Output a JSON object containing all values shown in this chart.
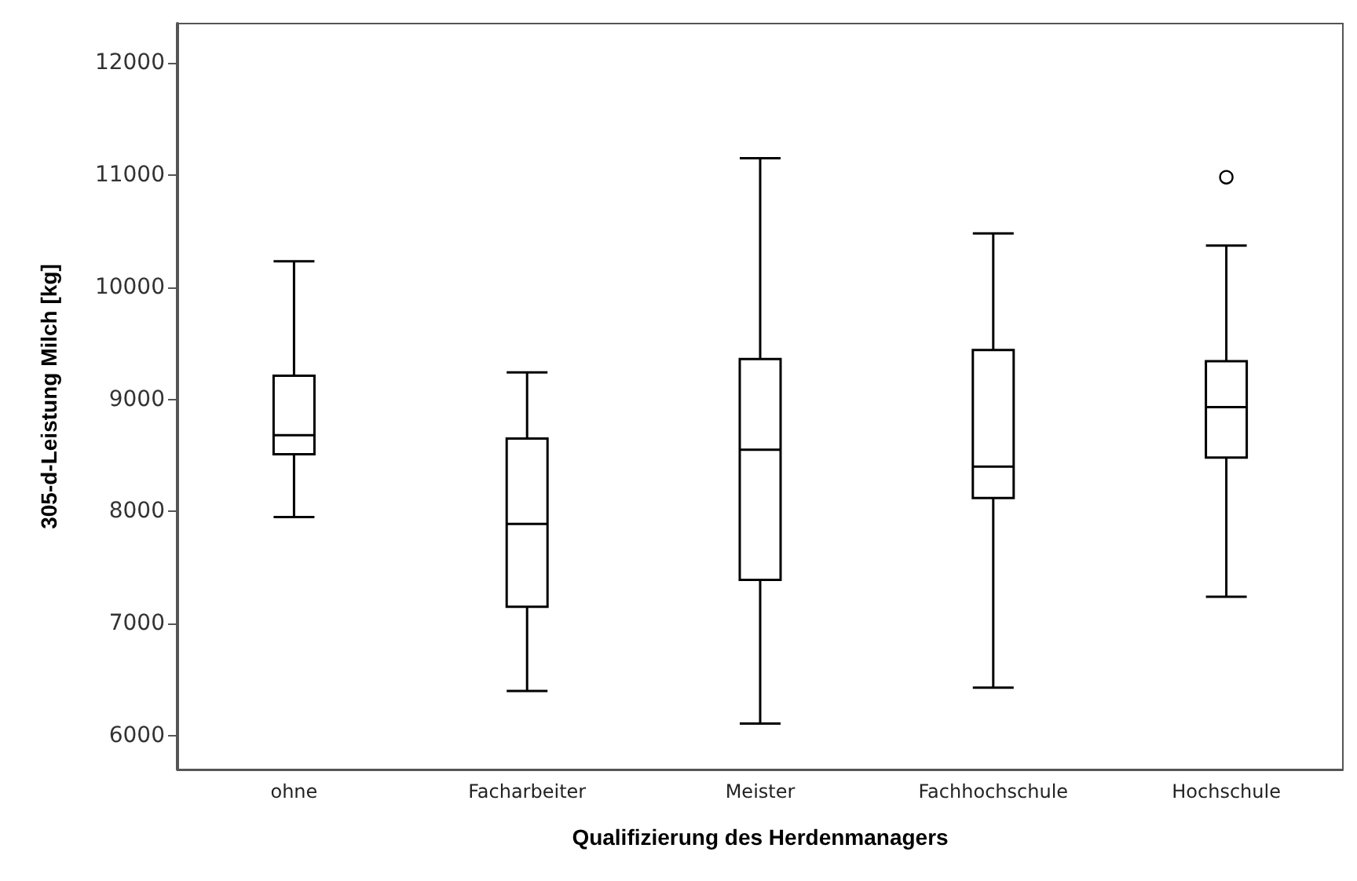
{
  "chart_data": {
    "type": "box",
    "xlabel": "Qualifizierung des Herdenmanagers",
    "ylabel": "305-d-Leistung Milch [kg]",
    "categories": [
      "ohne",
      "Facharbeiter",
      "Meister",
      "Fachhochschule",
      "Hochschule"
    ],
    "boxes": [
      {
        "low": 7950,
        "q1": 8510,
        "median": 8680,
        "q3": 9210,
        "high": 10230
      },
      {
        "low": 6400,
        "q1": 7150,
        "median": 7890,
        "q3": 8650,
        "high": 9240
      },
      {
        "low": 6110,
        "q1": 7390,
        "median": 8550,
        "q3": 9360,
        "high": 11150
      },
      {
        "low": 6430,
        "q1": 8120,
        "median": 8400,
        "q3": 9440,
        "high": 10480
      },
      {
        "low": 7240,
        "q1": 8480,
        "median": 8930,
        "q3": 9340,
        "high": 10370,
        "outliers": [
          10980
        ]
      }
    ],
    "color": "#000000",
    "ylim": [
      5700,
      12350
    ],
    "yticks": [
      6000,
      7000,
      8000,
      9000,
      10000,
      11000,
      12000
    ],
    "grid": false
  }
}
